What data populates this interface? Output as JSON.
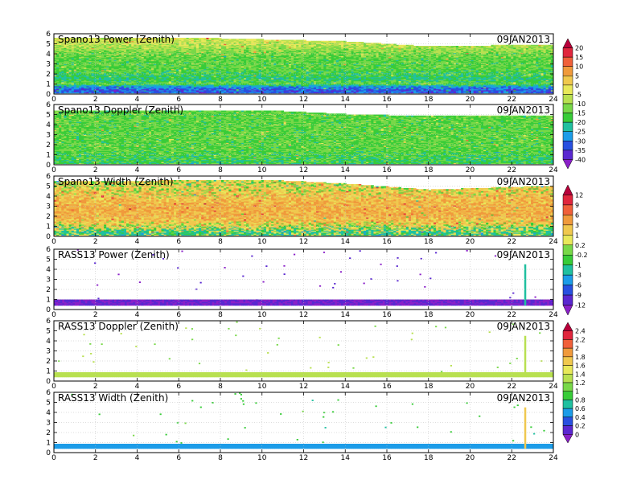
{
  "figure": {
    "date_label": "09JAN2013"
  },
  "chart_data": [
    {
      "type": "heatmap",
      "title": "Spano13 Power (Zenith)",
      "date": "09JAN2013",
      "xlim": [
        0,
        24
      ],
      "ylim": [
        0,
        6
      ],
      "xticks": [
        0,
        2,
        4,
        6,
        8,
        10,
        12,
        14,
        16,
        18,
        20,
        22,
        24
      ],
      "yticks": [
        0,
        1,
        2,
        3,
        4,
        5,
        6
      ],
      "colorbar_group": 0,
      "pattern": "dense",
      "data_top_by_hour": [
        [
          0,
          5.5
        ],
        [
          8,
          5.5
        ],
        [
          14,
          5.2
        ],
        [
          18,
          4.7
        ],
        [
          24,
          4.9
        ]
      ],
      "rows_by_height": [
        {
          "y": 0.4,
          "value": -32
        },
        {
          "y": 0.7,
          "value": -28
        },
        {
          "y": 1.0,
          "value": -15
        },
        {
          "y": 1.5,
          "value": -20
        },
        {
          "y": 2.5,
          "value": -15
        },
        {
          "y": 3.5,
          "value": -15
        },
        {
          "y": 4.5,
          "value": -10
        },
        {
          "y": 5.2,
          "value": -5
        }
      ],
      "grid": true
    },
    {
      "type": "heatmap",
      "title": "Spano13 Doppler (Zenith)",
      "date": "09JAN2013",
      "xlim": [
        0,
        24
      ],
      "ylim": [
        0,
        6
      ],
      "xticks": [
        0,
        2,
        4,
        6,
        8,
        10,
        12,
        14,
        16,
        18,
        20,
        22,
        24
      ],
      "yticks": [
        0,
        1,
        2,
        3,
        4,
        5,
        6
      ],
      "colorbar_group": 0,
      "pattern": "dense",
      "data_top_by_hour": [
        [
          0,
          5.3
        ],
        [
          10,
          5.4
        ],
        [
          14,
          5.0
        ],
        [
          18,
          4.8
        ],
        [
          24,
          4.9
        ]
      ],
      "rows_by_height": [
        {
          "y": 0.4,
          "value": -18
        },
        {
          "y": 1.5,
          "value": -15
        },
        {
          "y": 3.0,
          "value": -15
        },
        {
          "y": 4.5,
          "value": -15
        }
      ],
      "grid": true
    },
    {
      "type": "heatmap",
      "title": "Spano13 Width (Zenith)",
      "date": "09JAN2013",
      "xlim": [
        0,
        24
      ],
      "ylim": [
        0,
        6
      ],
      "xticks": [
        0,
        2,
        4,
        6,
        8,
        10,
        12,
        14,
        16,
        18,
        20,
        22,
        24
      ],
      "yticks": [
        0,
        1,
        2,
        3,
        4,
        5,
        6
      ],
      "colorbar_group": 1,
      "pattern": "dense",
      "data_top_by_hour": [
        [
          0,
          5.4
        ],
        [
          10,
          5.6
        ],
        [
          14,
          5.2
        ],
        [
          18,
          4.6
        ],
        [
          24,
          5.0
        ]
      ],
      "rows_by_height": [
        {
          "y": 0.4,
          "value": -1
        },
        {
          "y": 1.0,
          "value": 1
        },
        {
          "y": 2.0,
          "value": 3
        },
        {
          "y": 3.0,
          "value": 3
        },
        {
          "y": 4.0,
          "value": 2
        },
        {
          "y": 5.0,
          "value": 1
        }
      ],
      "grid": true
    },
    {
      "type": "heatmap",
      "title": "RASS13 Power (Zenith)",
      "date": "09JAN2013",
      "xlim": [
        0,
        24
      ],
      "ylim": [
        0,
        6
      ],
      "xticks": [
        0,
        2,
        4,
        6,
        8,
        10,
        12,
        14,
        16,
        18,
        20,
        22,
        24
      ],
      "yticks": [
        0,
        1,
        2,
        3,
        4,
        5,
        6
      ],
      "colorbar_group": 1,
      "pattern": "band",
      "band": {
        "y_range": [
          0.4,
          0.9
        ],
        "value": -12
      },
      "spike": {
        "x": 22.6,
        "y_range": [
          0.4,
          4.5
        ],
        "value": -3
      },
      "scattered_value": -12,
      "grid": true
    },
    {
      "type": "heatmap",
      "title": "RASS13 Doppler (Zenith)",
      "date": "09JAN2013",
      "xlim": [
        0,
        24
      ],
      "ylim": [
        0,
        6
      ],
      "xticks": [
        0,
        2,
        4,
        6,
        8,
        10,
        12,
        14,
        16,
        18,
        20,
        22,
        24
      ],
      "yticks": [
        0,
        1,
        2,
        3,
        4,
        5,
        6
      ],
      "colorbar_group": 2,
      "pattern": "band",
      "band": {
        "y_range": [
          0.4,
          0.8
        ],
        "value": 1.3
      },
      "spike": {
        "x": 22.6,
        "y_range": [
          0.4,
          4.5
        ],
        "value": 1.3
      },
      "scattered_value": 1.2,
      "grid": true
    },
    {
      "type": "heatmap",
      "title": "RASS13 Width (Zenith)",
      "date": "09JAN2013",
      "xlim": [
        0,
        24
      ],
      "ylim": [
        0,
        6
      ],
      "xticks": [
        0,
        2,
        4,
        6,
        8,
        10,
        12,
        14,
        16,
        18,
        20,
        22,
        24
      ],
      "yticks": [
        0,
        1,
        2,
        3,
        4,
        5,
        6
      ],
      "colorbar_group": 2,
      "pattern": "band",
      "band": {
        "y_range": [
          0.4,
          0.8
        ],
        "value": 0.5
      },
      "spike": {
        "x": 22.6,
        "y_range": [
          0.4,
          4.5
        ],
        "value": 1.6
      },
      "scattered_value": 0.9,
      "grid": true
    }
  ],
  "colorbars": [
    {
      "labels": [
        "20",
        "15",
        "10",
        "5",
        "0",
        "-5",
        "-10",
        "-15",
        "-20",
        "-25",
        "-30",
        "-35",
        "-40"
      ],
      "colors": [
        "#b8003a",
        "#e0263d",
        "#f0603a",
        "#f09a3c",
        "#f0c84e",
        "#e8e85a",
        "#b8e050",
        "#78d848",
        "#38cc38",
        "#20c0a0",
        "#1c9ce8",
        "#2850e0",
        "#5a28d0",
        "#8a20c8"
      ]
    },
    {
      "labels": [
        "12",
        "9",
        "6",
        "3",
        "1",
        "0.2",
        "-0.2",
        "-1",
        "-3",
        "-6",
        "-9",
        "-12"
      ],
      "colors": [
        "#b8003a",
        "#e0263d",
        "#f0603a",
        "#f09a3c",
        "#f0c84e",
        "#e8e85a",
        "#78d848",
        "#38cc38",
        "#20c0a0",
        "#1c9ce8",
        "#2850e0",
        "#5a28d0",
        "#8a20c8"
      ]
    },
    {
      "labels": [
        "2.4",
        "2.2",
        "2",
        "1.8",
        "1.6",
        "1.4",
        "1.2",
        "1",
        "0.8",
        "0.6",
        "0.4",
        "0.2",
        "0"
      ],
      "colors": [
        "#b8003a",
        "#e0263d",
        "#f0603a",
        "#f09a3c",
        "#f0c84e",
        "#e8e85a",
        "#b8e050",
        "#78d848",
        "#38cc38",
        "#20c0a0",
        "#1c9ce8",
        "#2850e0",
        "#5a28d0",
        "#8a20c8"
      ]
    }
  ]
}
